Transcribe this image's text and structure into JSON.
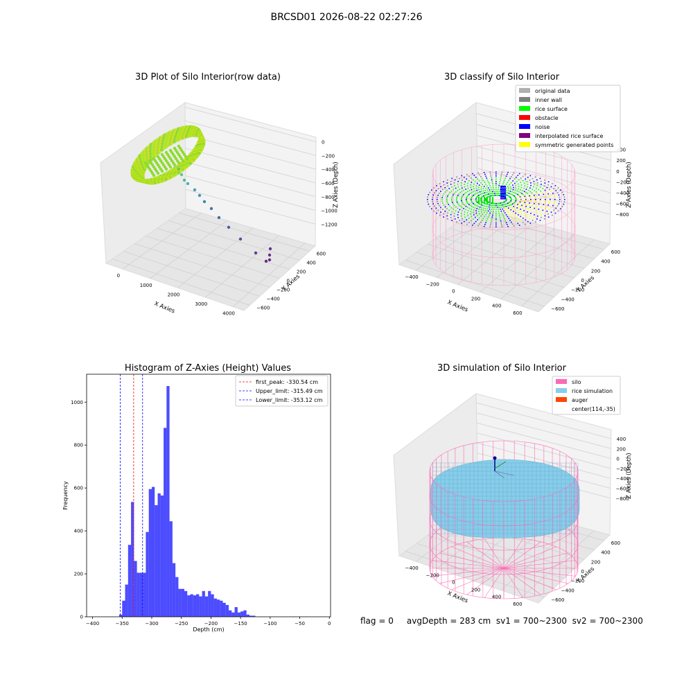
{
  "figure": {
    "suptitle": "BRCSD01 2026-08-22 02:27:26",
    "flag_text": "flag = 0     avgDepth = 283 cm  sv1 = 700~2300  sv2 = 700~2300"
  },
  "panels": {
    "raw": {
      "title": "3D Plot of Silo Interior(row data)",
      "xlabel": "X Axies",
      "ylabel": "Y Axies",
      "zlabel": "Z Axies (Depth)",
      "xticks": [
        "0",
        "1000",
        "2000",
        "3000",
        "4000"
      ],
      "yticks": [
        "600",
        "400",
        "200",
        "0",
        "−200",
        "−400",
        "−600"
      ],
      "zticks": [
        "0",
        "−200",
        "−400",
        "−600",
        "−800",
        "−1000",
        "−1200"
      ]
    },
    "classify": {
      "title": "3D classify of Silo Interior",
      "xlabel": "X Axies",
      "ylabel": "Y Axies",
      "zlabel": "Z Axies (Depth)",
      "xticks": [
        "−400",
        "−200",
        "0",
        "200",
        "400",
        "600"
      ],
      "yticks": [
        "600",
        "400",
        "200",
        "0",
        "−200",
        "−400",
        "−600"
      ],
      "zticks": [
        "400",
        "200",
        "0",
        "−200",
        "−400",
        "−600",
        "−800"
      ],
      "legend": [
        {
          "label": "original data",
          "color": "#b0b0b0"
        },
        {
          "label": "inner wall",
          "color": "#808080"
        },
        {
          "label": "rice surface",
          "color": "#00ff00"
        },
        {
          "label": "obstacle",
          "color": "#ff0000"
        },
        {
          "label": "noise",
          "color": "#0000ff"
        },
        {
          "label": "interpolated rice surface",
          "color": "#800080"
        },
        {
          "label": "symmetric generated points",
          "color": "#ffff00"
        }
      ]
    },
    "simulation": {
      "title": "3D simulation of Silo Interior",
      "xlabel": "X Axies",
      "ylabel": "Y Axies",
      "zlabel": "Z Axies (Depth)",
      "xticks": [
        "−400",
        "−200",
        "0",
        "200",
        "400",
        "600"
      ],
      "yticks": [
        "600",
        "400",
        "200",
        "0",
        "−200",
        "−400",
        "−600"
      ],
      "zticks": [
        "400",
        "200",
        "0",
        "−200",
        "−400",
        "−600",
        "−800"
      ],
      "legend": [
        {
          "label": "silo",
          "color": "#ff69b4"
        },
        {
          "label": "rice simulation",
          "color": "#87ceeb"
        },
        {
          "label": "auger",
          "color": "#ff4500"
        },
        {
          "label": "center(114,-35)",
          "color": ""
        }
      ]
    }
  },
  "chart_data": {
    "type": "bar",
    "title": "Histogram of Z-Axies (Height) Values",
    "xlabel": "Depth (cm)",
    "ylabel": "Frequency",
    "xlim": [
      -410,
      2
    ],
    "ylim": [
      0,
      1130
    ],
    "xticks": [
      -400,
      -350,
      -300,
      -250,
      -200,
      -150,
      -100,
      -50,
      0
    ],
    "yticks": [
      0,
      200,
      400,
      600,
      800,
      1000
    ],
    "bar_color": "#0000ff",
    "bin_width": 5,
    "bins": [
      {
        "start": -355,
        "value": 10
      },
      {
        "start": -350,
        "value": 75
      },
      {
        "start": -345,
        "value": 150
      },
      {
        "start": -340,
        "value": 335
      },
      {
        "start": -335,
        "value": 535
      },
      {
        "start": -330,
        "value": 260
      },
      {
        "start": -325,
        "value": 205
      },
      {
        "start": -320,
        "value": 205
      },
      {
        "start": -315,
        "value": 205
      },
      {
        "start": -310,
        "value": 395
      },
      {
        "start": -305,
        "value": 595
      },
      {
        "start": -300,
        "value": 605
      },
      {
        "start": -295,
        "value": 520
      },
      {
        "start": -290,
        "value": 575
      },
      {
        "start": -285,
        "value": 565
      },
      {
        "start": -280,
        "value": 880
      },
      {
        "start": -275,
        "value": 1075
      },
      {
        "start": -270,
        "value": 445
      },
      {
        "start": -265,
        "value": 250
      },
      {
        "start": -260,
        "value": 185
      },
      {
        "start": -255,
        "value": 130
      },
      {
        "start": -250,
        "value": 130
      },
      {
        "start": -245,
        "value": 120
      },
      {
        "start": -240,
        "value": 100
      },
      {
        "start": -235,
        "value": 105
      },
      {
        "start": -230,
        "value": 100
      },
      {
        "start": -225,
        "value": 105
      },
      {
        "start": -220,
        "value": 95
      },
      {
        "start": -215,
        "value": 120
      },
      {
        "start": -210,
        "value": 95
      },
      {
        "start": -205,
        "value": 120
      },
      {
        "start": -200,
        "value": 105
      },
      {
        "start": -195,
        "value": 85
      },
      {
        "start": -190,
        "value": 80
      },
      {
        "start": -185,
        "value": 75
      },
      {
        "start": -180,
        "value": 65
      },
      {
        "start": -175,
        "value": 55
      },
      {
        "start": -170,
        "value": 30
      },
      {
        "start": -165,
        "value": 20
      },
      {
        "start": -160,
        "value": 45
      },
      {
        "start": -155,
        "value": 20
      },
      {
        "start": -150,
        "value": 25
      },
      {
        "start": -145,
        "value": 30
      },
      {
        "start": -140,
        "value": 10
      },
      {
        "start": -135,
        "value": 5
      },
      {
        "start": -130,
        "value": 5
      }
    ],
    "vlines": [
      {
        "label": "first_peak: -330.54 cm",
        "x": -330.54,
        "color": "#ff0000"
      },
      {
        "label": "Upper_limit: -315.49 cm",
        "x": -315.49,
        "color": "#0000ff"
      },
      {
        "label": "Lower_limit: -353.12 cm",
        "x": -353.12,
        "color": "#0000ff"
      }
    ]
  }
}
